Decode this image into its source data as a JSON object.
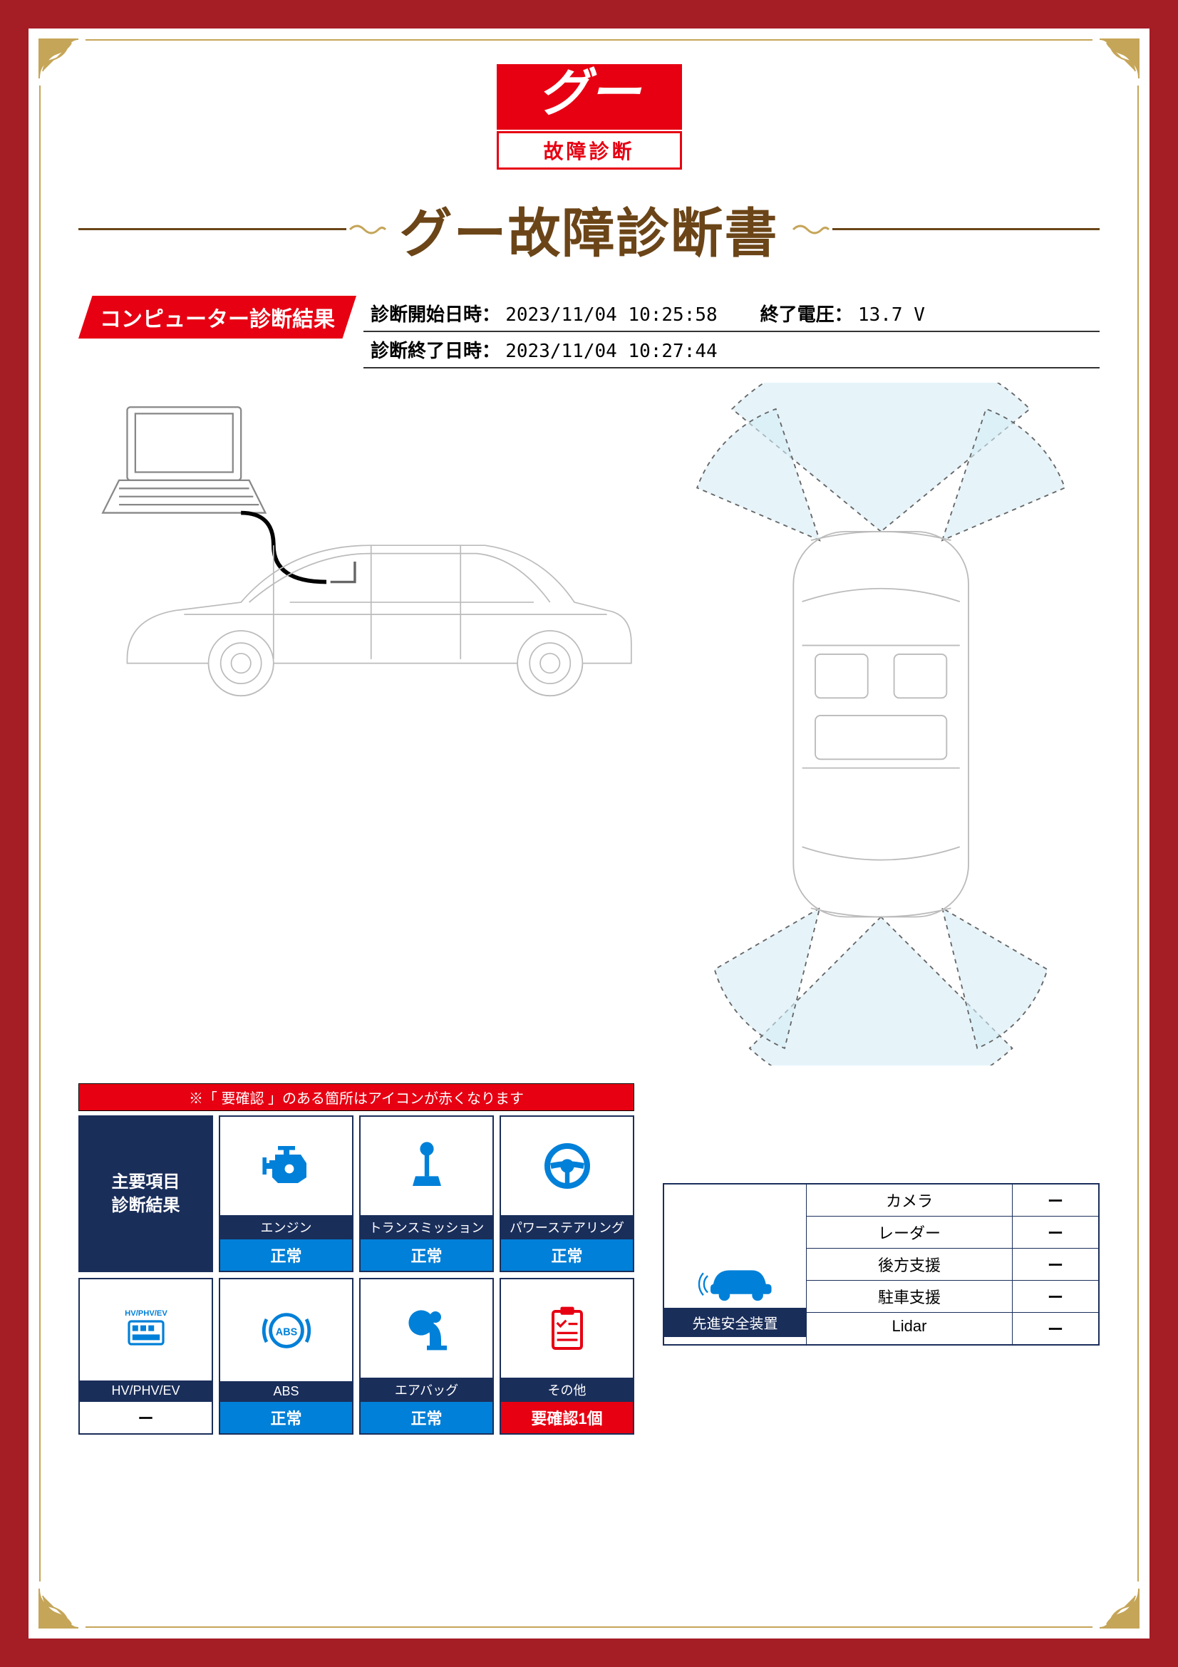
{
  "logo": {
    "brand": "グー",
    "sub": "故障診断"
  },
  "title": "グー故障診断書",
  "section_header": "コンピューター診断結果",
  "meta": {
    "start_label": "診断開始日時：",
    "start_value": "2023/11/04 10:25:58",
    "end_label": "診断終了日時：",
    "end_value": "2023/11/04 10:27:44",
    "voltage_label": "終了電圧：",
    "voltage_value": "13.7 V"
  },
  "note": "※「 要確認 」のある箇所はアイコンが赤くなります",
  "main_card_title": "主要項目\n診断結果",
  "cards": [
    {
      "name": "エンジン",
      "status": "正常",
      "status_type": "normal",
      "icon": "engine",
      "color": "#0080d8"
    },
    {
      "name": "トランスミッション",
      "status": "正常",
      "status_type": "normal",
      "icon": "transmission",
      "color": "#0080d8"
    },
    {
      "name": "パワーステアリング",
      "status": "正常",
      "status_type": "normal",
      "icon": "steering",
      "color": "#0080d8"
    },
    {
      "name": "HV/PHV/EV",
      "status": "ー",
      "status_type": "none",
      "icon": "hvev",
      "color": "#0080d8"
    },
    {
      "name": "ABS",
      "status": "正常",
      "status_type": "normal",
      "icon": "abs",
      "color": "#0080d8"
    },
    {
      "name": "エアバッグ",
      "status": "正常",
      "status_type": "normal",
      "icon": "airbag",
      "color": "#0080d8"
    },
    {
      "name": "その他",
      "status": "要確認1個",
      "status_type": "warn",
      "icon": "other",
      "color": "#e60012"
    }
  ],
  "safety": {
    "header": "先進安全装置",
    "rows": [
      {
        "name": "カメラ",
        "value": "ー"
      },
      {
        "name": "レーダー",
        "value": "ー"
      },
      {
        "name": "後方支援",
        "value": "ー"
      },
      {
        "name": "駐車支援",
        "value": "ー"
      },
      {
        "name": "Lidar",
        "value": "ー"
      }
    ]
  },
  "colors": {
    "frame": "#a51e26",
    "gold": "#c5a558",
    "brown": "#6b4518",
    "red": "#e60012",
    "navy": "#1a2e5a",
    "blue": "#0080d8"
  }
}
